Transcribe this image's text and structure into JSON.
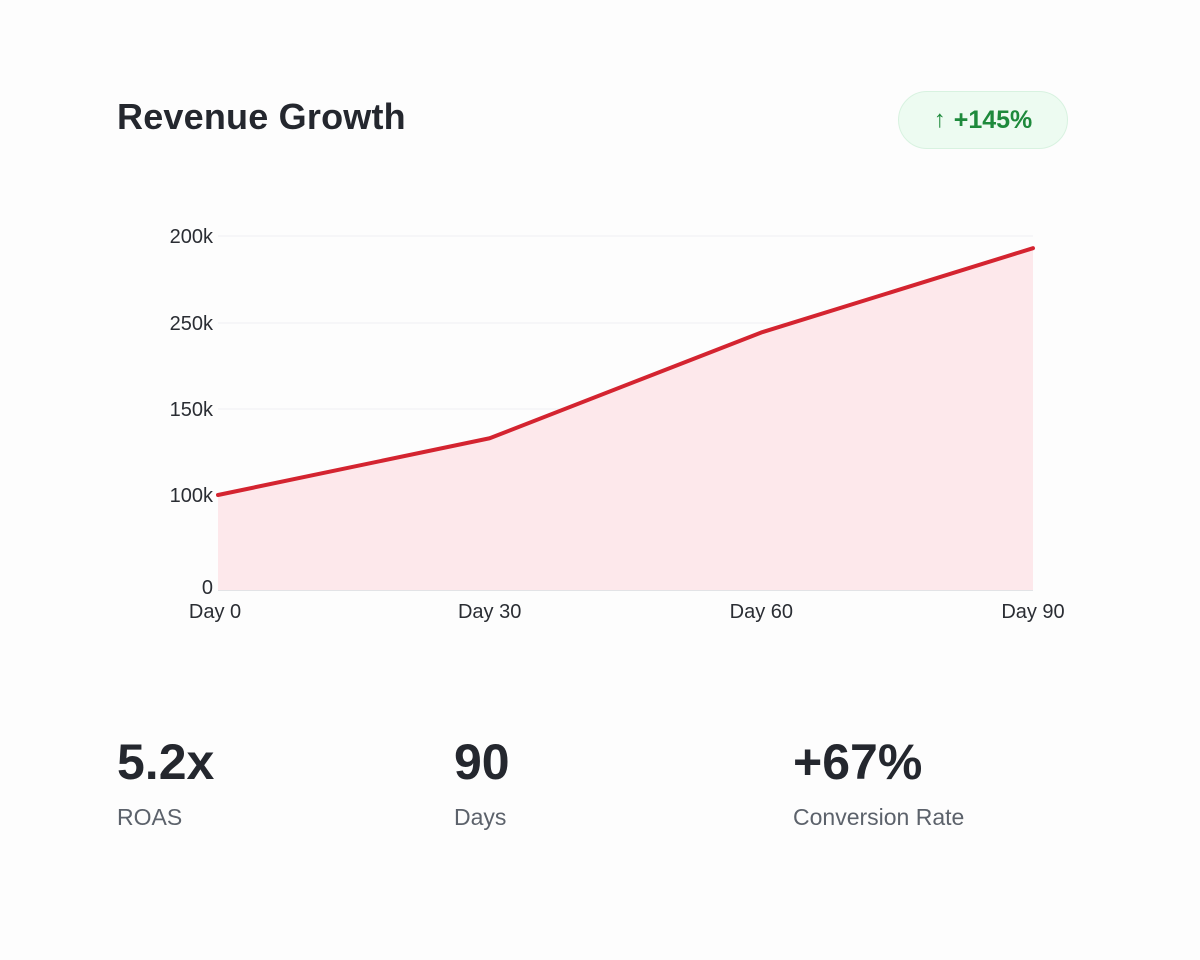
{
  "header": {
    "title": "Revenue Growth",
    "badge": {
      "icon": "arrow-up-icon",
      "icon_glyph": "↑",
      "text": "+145%",
      "color": "#1e8a3c",
      "background": "#edfbf1"
    }
  },
  "chart_data": {
    "type": "area",
    "title": "Revenue Growth",
    "xlabel": "",
    "ylabel": "",
    "categories": [
      "Day 0",
      "Day 30",
      "Day 60",
      "Day 90"
    ],
    "x": [
      0,
      30,
      60,
      90
    ],
    "y_tick_labels": [
      "0",
      "100k",
      "150k",
      "250k",
      "200k"
    ],
    "y_tick_note": "Tick labels printed bottom-to-top as shown; upper ticks evenly spaced, values expressed in axis-tick index units (0=0, 1=100k, 2=150k, 3=250k, 4=200k labels)",
    "series": [
      {
        "name": "Revenue",
        "values_tick_units": [
          1.0,
          1.66,
          2.89,
          3.86
        ],
        "color": "#d42430",
        "fill": "#fde8eb"
      }
    ],
    "x_tick_labels": [
      "Day 0",
      "Day 30",
      "Day 60",
      "Day 90"
    ],
    "ylim_tick_units": [
      0,
      4
    ],
    "grid": true,
    "legend": "none"
  },
  "stats": [
    {
      "value": "5.2x",
      "label": "ROAS"
    },
    {
      "value": "90",
      "label": "Days"
    },
    {
      "value": "+67%",
      "label": "Conversion Rate"
    }
  ]
}
